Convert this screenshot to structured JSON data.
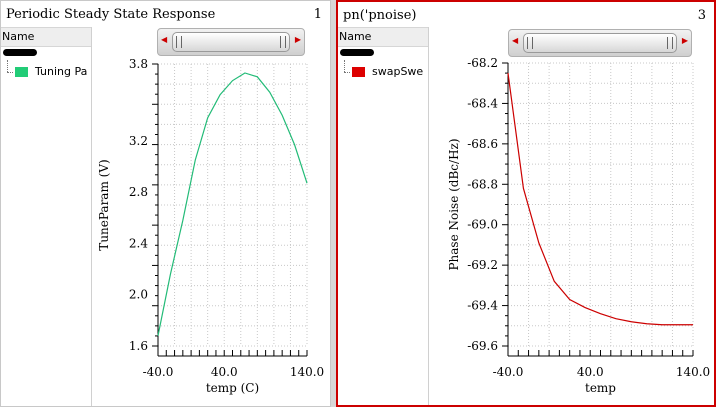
{
  "panes": [
    {
      "title": "Periodic Steady State Response",
      "number": "1",
      "legend": {
        "header": "Name",
        "entry": "Tuning Pa",
        "color": "#22cc77"
      }
    },
    {
      "title": "pn('pnoise)",
      "number": "3",
      "legend": {
        "header": "Name",
        "entry": "swapSwe",
        "color": "#dd0000"
      }
    }
  ],
  "chart_data": [
    {
      "type": "line",
      "xlabel": "temp (C)",
      "ylabel": "TuneParam (V)",
      "xlim": [
        -40,
        140
      ],
      "ylim": [
        1.6,
        3.8
      ],
      "xticks": [
        -40.0,
        40.0,
        140.0
      ],
      "xtick_labels": [
        "-40.0",
        "40.0",
        "140.0"
      ],
      "yticks": [
        1.6,
        2.0,
        2.4,
        2.8,
        3.2,
        3.8
      ],
      "ytick_labels": [
        "1.6",
        "2.0",
        "2.4",
        "2.8",
        "3.2",
        "3.8"
      ],
      "grid": true,
      "series": [
        {
          "name": "Tuning Pa",
          "color": "#22bb77",
          "x": [
            -40,
            -25,
            -10,
            5,
            20,
            35,
            50,
            65,
            80,
            95,
            110,
            125,
            140
          ],
          "y": [
            1.68,
            2.16,
            2.58,
            3.05,
            3.38,
            3.56,
            3.67,
            3.73,
            3.7,
            3.58,
            3.4,
            3.17,
            2.87
          ]
        }
      ]
    },
    {
      "type": "line",
      "xlabel": "temp",
      "ylabel": "Phase Noise (dBc/Hz)",
      "xlim": [
        -40,
        140
      ],
      "ylim": [
        -69.6,
        -68.2
      ],
      "xticks": [
        -40.0,
        40.0,
        140.0
      ],
      "xtick_labels": [
        "-40.0",
        "40.0",
        "140.0"
      ],
      "yticks": [
        -68.2,
        -68.4,
        -68.6,
        -68.8,
        -69.0,
        -69.2,
        -69.4,
        -69.6
      ],
      "ytick_labels": [
        "-68.2",
        "-68.4",
        "-68.6",
        "-68.8",
        "-69.0",
        "-69.2",
        "-69.4",
        "-69.6"
      ],
      "grid": true,
      "series": [
        {
          "name": "swapSwe",
          "color": "#cc0000",
          "x": [
            -40,
            -25,
            -10,
            5,
            20,
            35,
            50,
            65,
            80,
            95,
            110,
            125,
            140
          ],
          "y": [
            -68.25,
            -68.82,
            -69.09,
            -69.28,
            -69.37,
            -69.41,
            -69.44,
            -69.465,
            -69.48,
            -69.49,
            -69.495,
            -69.495,
            -69.495
          ]
        }
      ]
    }
  ]
}
